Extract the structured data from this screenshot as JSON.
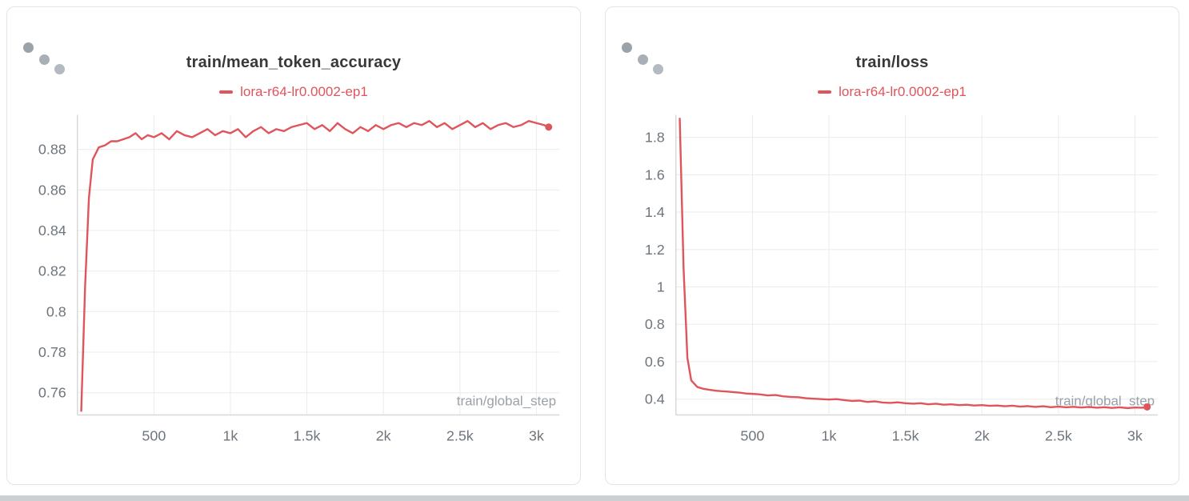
{
  "theme": {
    "line_color": "#e0545c",
    "grid_color": "#ebebeb",
    "axis_color": "#d8d8d8",
    "tick_text_color": "#6e757c",
    "title_color": "#383838",
    "axis_label_color": "#9aa1a8"
  },
  "chart_data": [
    {
      "type": "line",
      "title": "train/mean_token_accuracy",
      "xlabel": "train/global_step",
      "ylabel": "",
      "grid": true,
      "legend_position": "top-center",
      "xlim": [
        0,
        3150
      ],
      "ylim": [
        0.749,
        0.897
      ],
      "x_ticks": [
        500,
        1000,
        1500,
        2000,
        2500,
        3000
      ],
      "x_tick_labels": [
        "500",
        "1k",
        "1.5k",
        "2k",
        "2.5k",
        "3k"
      ],
      "y_ticks": [
        0.76,
        0.78,
        0.8,
        0.82,
        0.84,
        0.86,
        0.88
      ],
      "y_tick_labels": [
        "0.76",
        "0.78",
        "0.8",
        "0.82",
        "0.84",
        "0.86",
        "0.88"
      ],
      "series": [
        {
          "name": "lora-r64-lr0.0002-ep1",
          "color": "#e0545c",
          "end_marker": true,
          "points": [
            [
              25,
              0.751
            ],
            [
              50,
              0.812
            ],
            [
              75,
              0.856
            ],
            [
              100,
              0.875
            ],
            [
              140,
              0.881
            ],
            [
              180,
              0.882
            ],
            [
              220,
              0.884
            ],
            [
              260,
              0.884
            ],
            [
              300,
              0.885
            ],
            [
              340,
              0.886
            ],
            [
              380,
              0.888
            ],
            [
              420,
              0.885
            ],
            [
              460,
              0.887
            ],
            [
              500,
              0.886
            ],
            [
              550,
              0.888
            ],
            [
              600,
              0.885
            ],
            [
              650,
              0.889
            ],
            [
              700,
              0.887
            ],
            [
              750,
              0.886
            ],
            [
              800,
              0.888
            ],
            [
              850,
              0.89
            ],
            [
              900,
              0.887
            ],
            [
              950,
              0.889
            ],
            [
              1000,
              0.888
            ],
            [
              1050,
              0.89
            ],
            [
              1100,
              0.886
            ],
            [
              1150,
              0.889
            ],
            [
              1200,
              0.891
            ],
            [
              1250,
              0.888
            ],
            [
              1300,
              0.89
            ],
            [
              1350,
              0.889
            ],
            [
              1400,
              0.891
            ],
            [
              1450,
              0.892
            ],
            [
              1500,
              0.893
            ],
            [
              1550,
              0.89
            ],
            [
              1600,
              0.892
            ],
            [
              1650,
              0.889
            ],
            [
              1700,
              0.893
            ],
            [
              1750,
              0.89
            ],
            [
              1800,
              0.888
            ],
            [
              1850,
              0.891
            ],
            [
              1900,
              0.889
            ],
            [
              1950,
              0.892
            ],
            [
              2000,
              0.89
            ],
            [
              2050,
              0.892
            ],
            [
              2100,
              0.893
            ],
            [
              2150,
              0.891
            ],
            [
              2200,
              0.893
            ],
            [
              2250,
              0.892
            ],
            [
              2300,
              0.894
            ],
            [
              2350,
              0.891
            ],
            [
              2400,
              0.893
            ],
            [
              2450,
              0.89
            ],
            [
              2500,
              0.892
            ],
            [
              2550,
              0.894
            ],
            [
              2600,
              0.891
            ],
            [
              2650,
              0.893
            ],
            [
              2700,
              0.89
            ],
            [
              2750,
              0.892
            ],
            [
              2800,
              0.893
            ],
            [
              2850,
              0.891
            ],
            [
              2900,
              0.892
            ],
            [
              2950,
              0.894
            ],
            [
              3000,
              0.893
            ],
            [
              3050,
              0.892
            ],
            [
              3080,
              0.891
            ]
          ]
        }
      ]
    },
    {
      "type": "line",
      "title": "train/loss",
      "xlabel": "train/global_step",
      "ylabel": "",
      "grid": true,
      "legend_position": "top-center",
      "xlim": [
        0,
        3150
      ],
      "ylim": [
        0.315,
        1.92
      ],
      "x_ticks": [
        500,
        1000,
        1500,
        2000,
        2500,
        3000
      ],
      "x_tick_labels": [
        "500",
        "1k",
        "1.5k",
        "2k",
        "2.5k",
        "3k"
      ],
      "y_ticks": [
        0.4,
        0.6,
        0.8,
        1,
        1.2,
        1.4,
        1.6,
        1.8
      ],
      "y_tick_labels": [
        "0.4",
        "0.6",
        "0.8",
        "1",
        "1.2",
        "1.4",
        "1.6",
        "1.8"
      ],
      "series": [
        {
          "name": "lora-r64-lr0.0002-ep1",
          "color": "#e0545c",
          "end_marker": true,
          "points": [
            [
              25,
              1.9
            ],
            [
              50,
              1.1
            ],
            [
              75,
              0.62
            ],
            [
              100,
              0.5
            ],
            [
              140,
              0.465
            ],
            [
              180,
              0.455
            ],
            [
              220,
              0.45
            ],
            [
              260,
              0.445
            ],
            [
              300,
              0.442
            ],
            [
              340,
              0.44
            ],
            [
              380,
              0.437
            ],
            [
              420,
              0.434
            ],
            [
              460,
              0.43
            ],
            [
              500,
              0.428
            ],
            [
              550,
              0.425
            ],
            [
              600,
              0.42
            ],
            [
              650,
              0.422
            ],
            [
              700,
              0.415
            ],
            [
              750,
              0.412
            ],
            [
              800,
              0.41
            ],
            [
              850,
              0.405
            ],
            [
              900,
              0.402
            ],
            [
              950,
              0.4
            ],
            [
              1000,
              0.398
            ],
            [
              1050,
              0.4
            ],
            [
              1100,
              0.395
            ],
            [
              1150,
              0.39
            ],
            [
              1200,
              0.392
            ],
            [
              1250,
              0.385
            ],
            [
              1300,
              0.388
            ],
            [
              1350,
              0.382
            ],
            [
              1400,
              0.38
            ],
            [
              1450,
              0.383
            ],
            [
              1500,
              0.378
            ],
            [
              1550,
              0.375
            ],
            [
              1600,
              0.378
            ],
            [
              1650,
              0.372
            ],
            [
              1700,
              0.375
            ],
            [
              1750,
              0.37
            ],
            [
              1800,
              0.372
            ],
            [
              1850,
              0.368
            ],
            [
              1900,
              0.37
            ],
            [
              1950,
              0.366
            ],
            [
              2000,
              0.368
            ],
            [
              2050,
              0.364
            ],
            [
              2100,
              0.366
            ],
            [
              2150,
              0.362
            ],
            [
              2200,
              0.365
            ],
            [
              2250,
              0.36
            ],
            [
              2300,
              0.363
            ],
            [
              2350,
              0.358
            ],
            [
              2400,
              0.362
            ],
            [
              2450,
              0.357
            ],
            [
              2500,
              0.36
            ],
            [
              2550,
              0.356
            ],
            [
              2600,
              0.359
            ],
            [
              2650,
              0.355
            ],
            [
              2700,
              0.358
            ],
            [
              2750,
              0.354
            ],
            [
              2800,
              0.357
            ],
            [
              2850,
              0.353
            ],
            [
              2900,
              0.356
            ],
            [
              2950,
              0.352
            ],
            [
              3000,
              0.355
            ],
            [
              3050,
              0.354
            ],
            [
              3080,
              0.358
            ]
          ]
        }
      ]
    }
  ]
}
